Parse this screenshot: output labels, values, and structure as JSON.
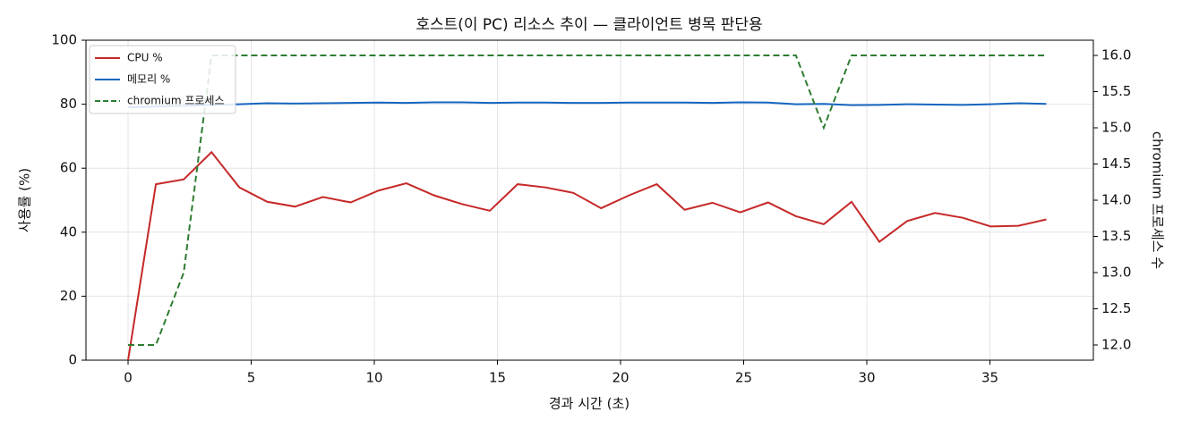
{
  "chart_data": {
    "type": "line",
    "title": "호스트(이 PC) 리소스 추이 — 클라이언트 병목 판단용",
    "xlabel": "경과 시간 (초)",
    "ylabel": "사용률 (%)",
    "y2label": "chromium 프로세스 수",
    "x": [
      0,
      1.13,
      2.26,
      3.39,
      4.52,
      5.65,
      6.78,
      7.91,
      9.04,
      10.17,
      11.3,
      12.43,
      13.56,
      14.69,
      15.82,
      16.95,
      18.08,
      19.21,
      20.34,
      21.47,
      22.6,
      23.73,
      24.86,
      25.99,
      27.12,
      28.25,
      29.38,
      30.51,
      31.64,
      32.77,
      33.9,
      35.03,
      36.16,
      37.29
    ],
    "series": [
      {
        "name": "CPU %",
        "color": "#c62828",
        "linestyle": "solid",
        "values": [
          0,
          55,
          56.5,
          65,
          54,
          49.5,
          48,
          51,
          49.3,
          53,
          55.3,
          51.5,
          48.8,
          46.7,
          55,
          54,
          52.3,
          47.5,
          51.5,
          55,
          47,
          49.2,
          46.2,
          49.3,
          45,
          42.5,
          49.5,
          37,
          43.5,
          46,
          44.5,
          41.8,
          42,
          44
        ]
      },
      {
        "name": "메모리 %",
        "color": "#1565c0",
        "linestyle": "solid",
        "values": [
          79,
          79.3,
          79.5,
          79.8,
          80,
          80.3,
          80.2,
          80.3,
          80.4,
          80.5,
          80.4,
          80.6,
          80.6,
          80.4,
          80.5,
          80.5,
          80.4,
          80.4,
          80.5,
          80.5,
          80.5,
          80.4,
          80.6,
          80.5,
          80,
          80.1,
          79.7,
          79.8,
          80,
          79.9,
          79.8,
          80,
          80.3,
          80.1
        ]
      },
      {
        "name": "chromium 프로세스",
        "color": "#2e7d32",
        "linestyle": "dashed",
        "axis": "y2",
        "values": [
          12,
          12,
          13,
          16,
          16,
          16,
          16,
          16,
          16,
          16,
          16,
          16,
          16,
          16,
          16,
          16,
          16,
          16,
          16,
          16,
          16,
          16,
          16,
          16,
          16,
          15,
          16,
          16,
          16,
          16,
          16,
          16,
          16,
          16
        ]
      }
    ],
    "xlim": [
      -1.71,
      39.2
    ],
    "xticks": [
      0,
      5,
      10,
      15,
      20,
      25,
      30,
      35
    ],
    "ylim": [
      0,
      100
    ],
    "yticks": [
      0,
      20,
      40,
      60,
      80,
      100
    ],
    "y2lim": [
      11.79,
      16.21
    ],
    "y2ticks": [
      {
        "value": 12,
        "label": "12.0"
      },
      {
        "value": 12.5,
        "label": "12.5"
      },
      {
        "value": 13,
        "label": "13.0"
      },
      {
        "value": 13.5,
        "label": "13.5"
      },
      {
        "value": 14,
        "label": "14.0"
      },
      {
        "value": 14.5,
        "label": "14.5"
      },
      {
        "value": 15,
        "label": "15.0"
      },
      {
        "value": 15.5,
        "label": "15.5"
      },
      {
        "value": 16,
        "label": "16.0"
      }
    ],
    "grid": true,
    "legend": "upper-left"
  }
}
